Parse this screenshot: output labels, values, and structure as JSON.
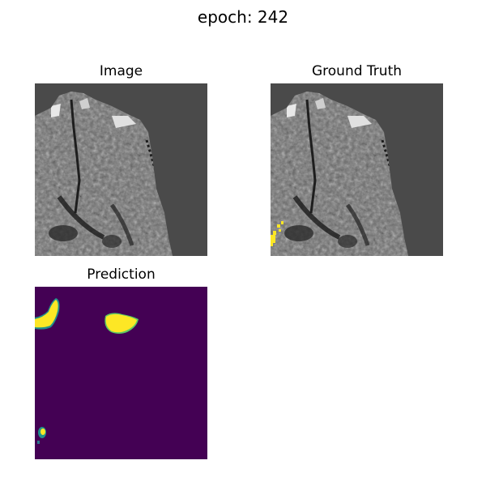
{
  "figure": {
    "title": "epoch: 242",
    "panels": [
      {
        "title": "Image"
      },
      {
        "title": "Ground Truth"
      },
      {
        "title": "Prediction"
      }
    ]
  },
  "colors": {
    "background_gray": "#4a4a4a",
    "mask_yellow": "#fde725",
    "prediction_background": "#440154",
    "prediction_edge": "#21918c"
  }
}
